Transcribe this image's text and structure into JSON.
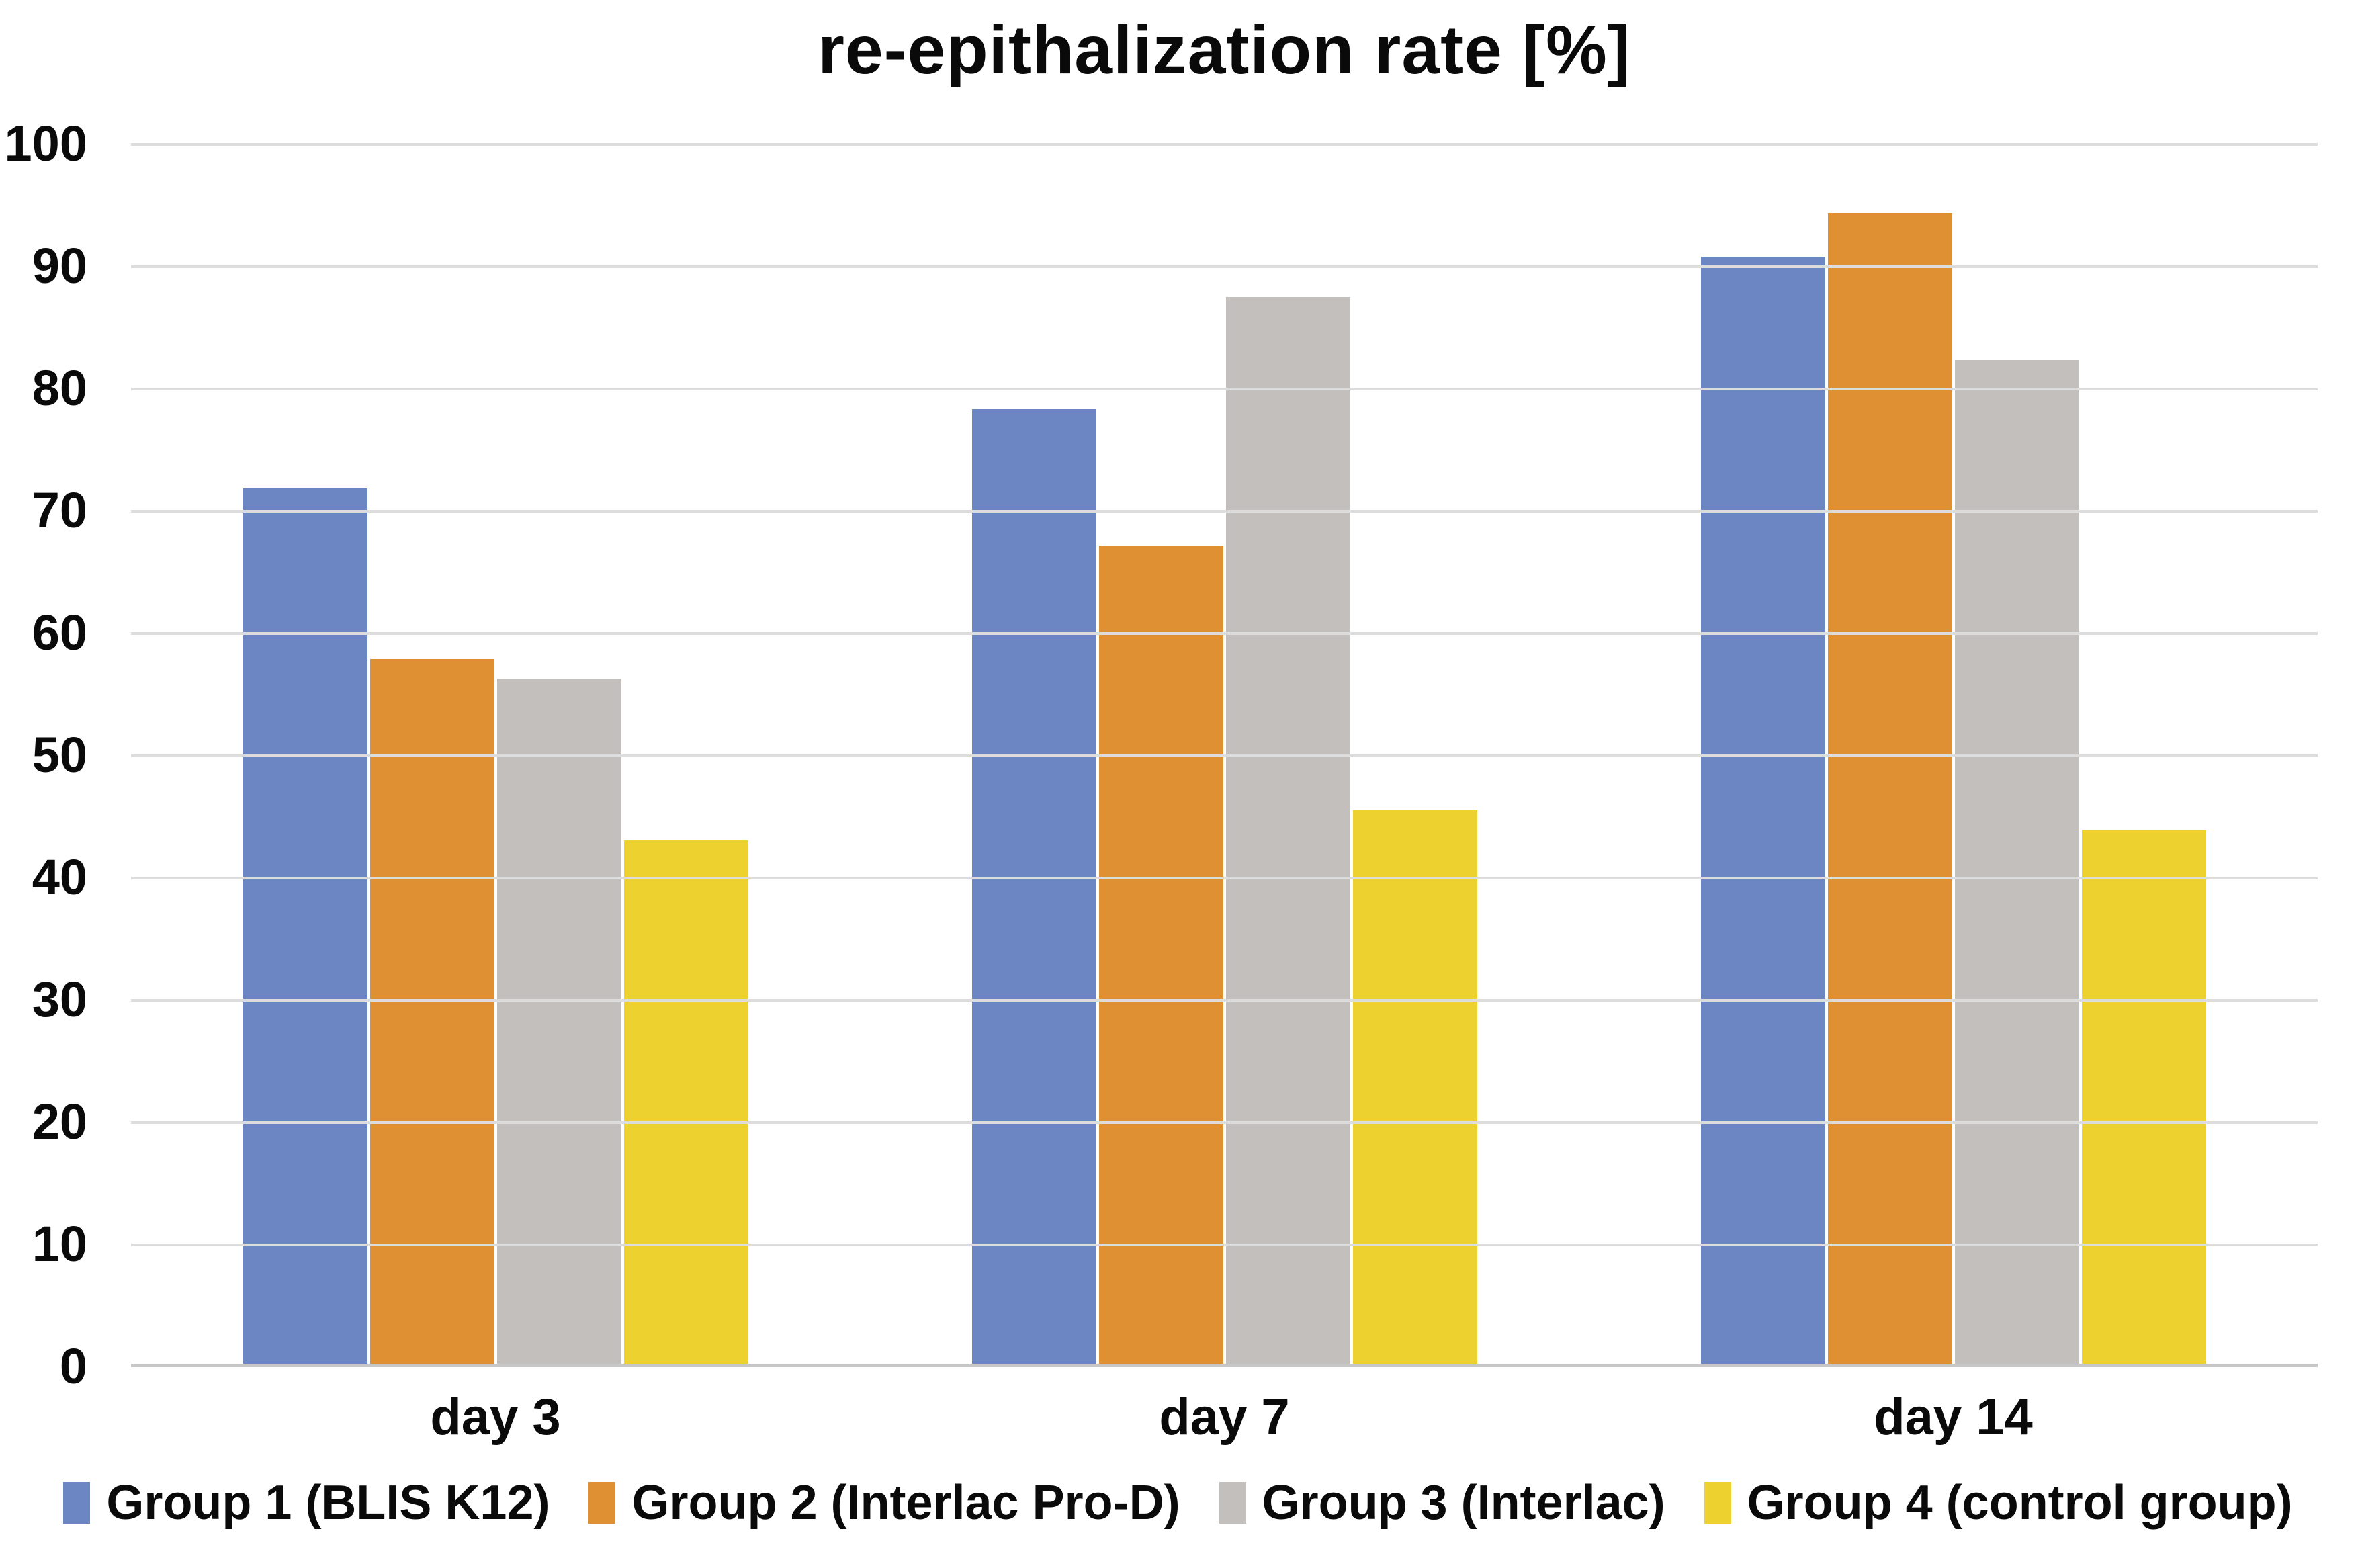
{
  "chart_data": {
    "type": "bar",
    "title": "re-epithalization rate [%]",
    "categories": [
      "day 3",
      "day 7",
      "day 14"
    ],
    "series": [
      {
        "name": "Group 1 (BLIS K12)",
        "color": "#6C86C4",
        "values": [
          71.8,
          78.3,
          90.8
        ]
      },
      {
        "name": "Group 2 (Interlac Pro-D)",
        "color": "#DE9032",
        "values": [
          57.8,
          67.1,
          94.4
        ]
      },
      {
        "name": "Group 3 (Interlac)",
        "color": "#C2BFBC",
        "values": [
          56.2,
          87.5,
          82.3
        ]
      },
      {
        "name": "Group 4 (control group)",
        "color": "#EDD12F",
        "values": [
          42.9,
          45.4,
          43.8
        ]
      }
    ],
    "xlabel": "",
    "ylabel": "",
    "ylim": [
      0,
      100
    ],
    "yticks": [
      0,
      10,
      20,
      30,
      40,
      50,
      60,
      70,
      80,
      90,
      100
    ],
    "grid": true,
    "legend_position": "bottom",
    "gridline_color": "#dcdcdc",
    "axis_line_color": "#c6c6c6",
    "text_color": "#0a0a0a"
  }
}
